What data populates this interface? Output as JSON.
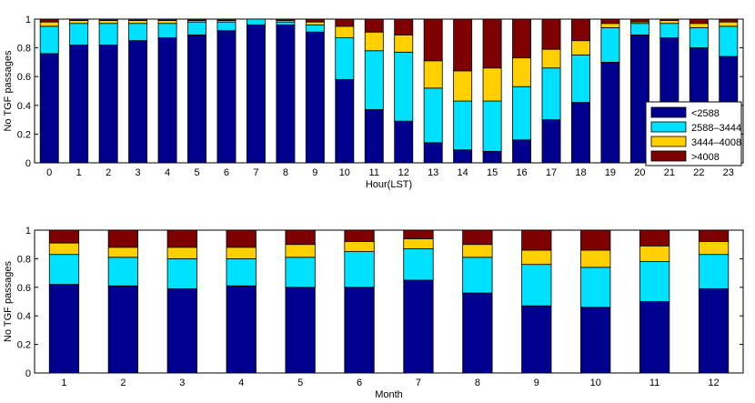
{
  "colors": {
    "s1": "#00008f",
    "s2": "#00e0ff",
    "s3": "#ffcf00",
    "s4": "#7f0000",
    "axis": "#000000"
  },
  "chart_data": [
    {
      "type": "bar",
      "stacked": true,
      "title": "",
      "xlabel": "Hour(LST)",
      "ylabel": "No TGF passages",
      "ylim": [
        0,
        1
      ],
      "yticks": [
        "0",
        "0.2",
        "0.4",
        "0.6",
        "0.8",
        "1"
      ],
      "categories": [
        "0",
        "1",
        "2",
        "3",
        "4",
        "5",
        "6",
        "7",
        "8",
        "9",
        "10",
        "11",
        "12",
        "13",
        "14",
        "15",
        "16",
        "17",
        "18",
        "19",
        "20",
        "21",
        "22",
        "23"
      ],
      "legend": {
        "position": "bottom-right"
      },
      "series": [
        {
          "name": "<2588",
          "values": [
            0.76,
            0.82,
            0.82,
            0.85,
            0.87,
            0.89,
            0.92,
            0.96,
            0.96,
            0.91,
            0.58,
            0.37,
            0.29,
            0.14,
            0.09,
            0.08,
            0.16,
            0.3,
            0.42,
            0.7,
            0.89,
            0.87,
            0.8,
            0.74
          ]
        },
        {
          "name": "2588–3444",
          "values": [
            0.19,
            0.15,
            0.15,
            0.12,
            0.1,
            0.09,
            0.06,
            0.04,
            0.02,
            0.05,
            0.29,
            0.41,
            0.48,
            0.38,
            0.34,
            0.35,
            0.37,
            0.36,
            0.33,
            0.24,
            0.08,
            0.1,
            0.14,
            0.21
          ]
        },
        {
          "name": "3444–4008",
          "values": [
            0.03,
            0.02,
            0.02,
            0.02,
            0.02,
            0.01,
            0.01,
            0.0,
            0.01,
            0.02,
            0.08,
            0.13,
            0.12,
            0.19,
            0.21,
            0.23,
            0.2,
            0.13,
            0.1,
            0.03,
            0.01,
            0.02,
            0.03,
            0.03
          ]
        },
        {
          "name": ">4008",
          "values": [
            0.02,
            0.01,
            0.01,
            0.01,
            0.01,
            0.01,
            0.01,
            0.0,
            0.01,
            0.02,
            0.05,
            0.09,
            0.11,
            0.29,
            0.36,
            0.34,
            0.27,
            0.21,
            0.15,
            0.03,
            0.02,
            0.01,
            0.03,
            0.02
          ]
        }
      ]
    },
    {
      "type": "bar",
      "stacked": true,
      "title": "",
      "xlabel": "Month",
      "ylabel": "No TGF passages",
      "ylim": [
        0,
        1
      ],
      "yticks": [
        "0",
        "0.2",
        "0.4",
        "0.6",
        "0.8",
        "1"
      ],
      "categories": [
        "1",
        "2",
        "3",
        "4",
        "5",
        "6",
        "7",
        "8",
        "9",
        "10",
        "11",
        "12"
      ],
      "series": [
        {
          "name": "<2588",
          "values": [
            0.62,
            0.61,
            0.59,
            0.61,
            0.6,
            0.6,
            0.65,
            0.56,
            0.47,
            0.46,
            0.5,
            0.59
          ]
        },
        {
          "name": "2588–3444",
          "values": [
            0.21,
            0.2,
            0.21,
            0.19,
            0.21,
            0.25,
            0.22,
            0.25,
            0.29,
            0.28,
            0.28,
            0.24
          ]
        },
        {
          "name": "3444–4008",
          "values": [
            0.08,
            0.07,
            0.08,
            0.08,
            0.09,
            0.07,
            0.07,
            0.09,
            0.1,
            0.12,
            0.11,
            0.09
          ]
        },
        {
          "name": ">4008",
          "values": [
            0.09,
            0.12,
            0.12,
            0.12,
            0.1,
            0.08,
            0.06,
            0.1,
            0.14,
            0.14,
            0.11,
            0.08
          ]
        }
      ]
    }
  ]
}
